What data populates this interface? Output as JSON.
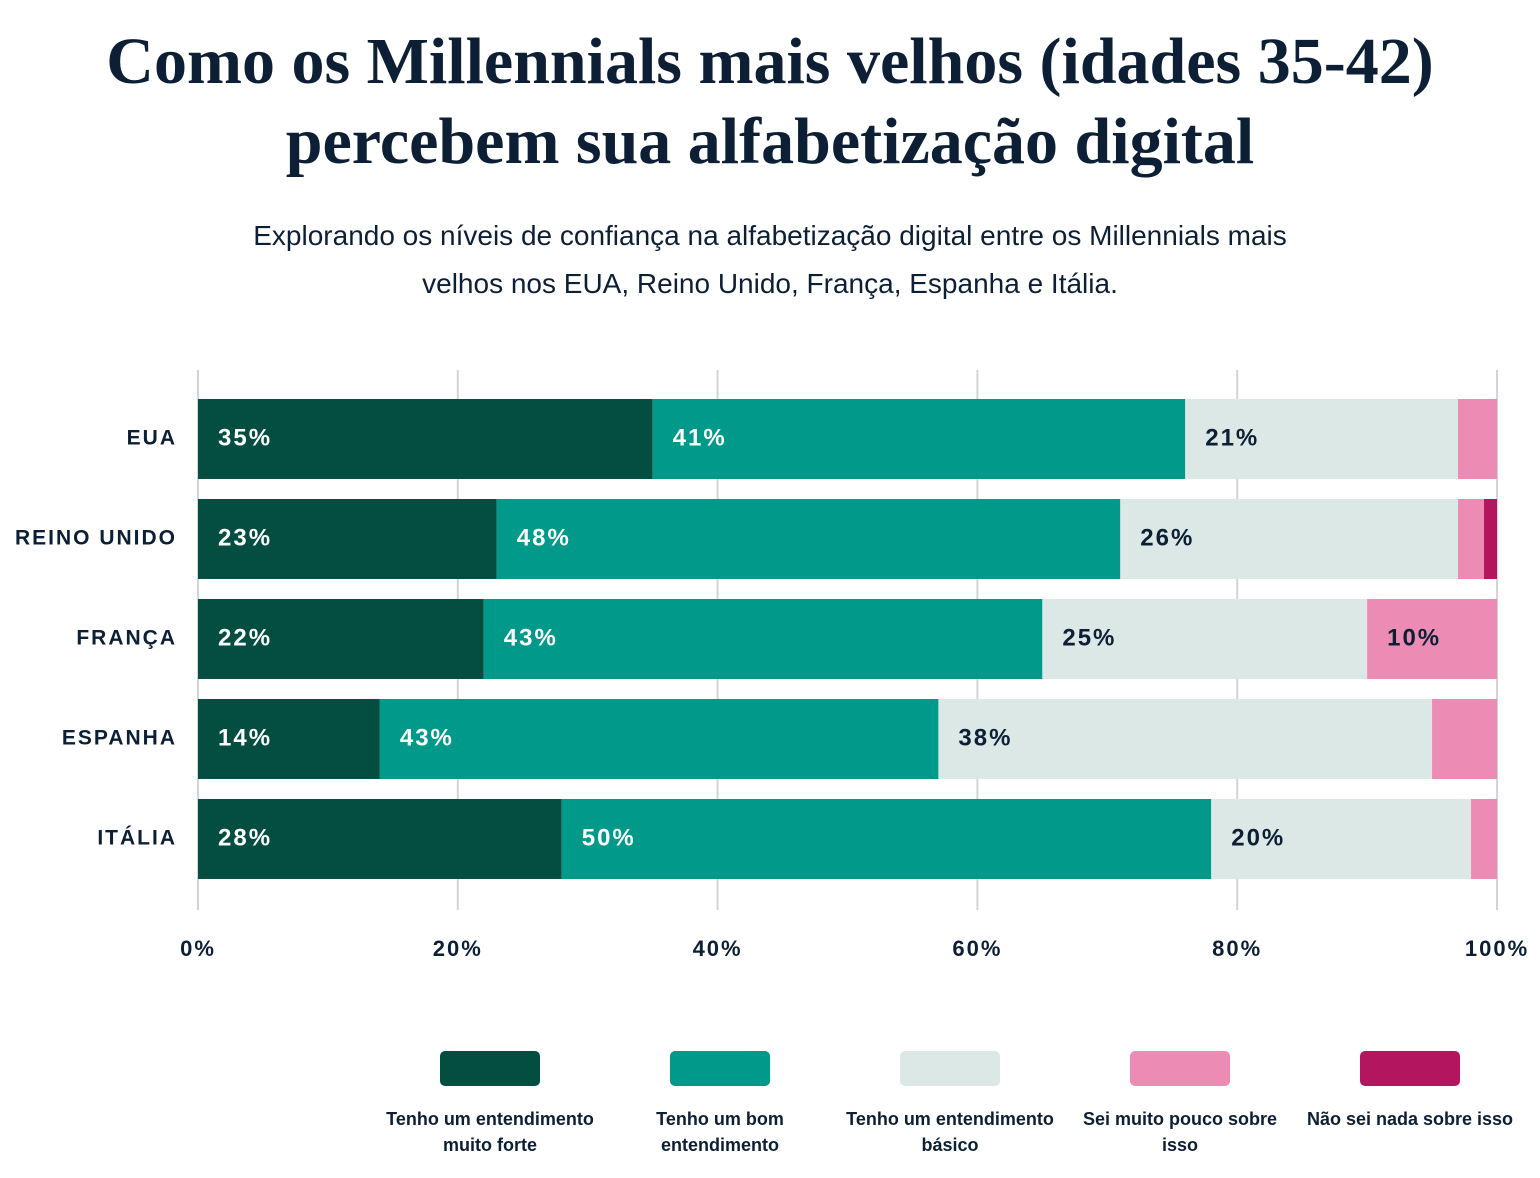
{
  "chart_data": {
    "type": "stacked_bar_horizontal",
    "title": "Como os Millennials mais velhos (idades 35-42) percebem sua alfabetização digital",
    "subtitle": "Explorando os níveis de confiança na alfabetização digital entre os Millennials mais velhos nos EUA, Reino Unido, França, Espanha e Itália.",
    "categories": [
      "EUA",
      "REINO UNIDO",
      "FRANÇA",
      "ESPANHA",
      "ITÁLIA"
    ],
    "series": [
      {
        "name": "Tenho um entendimento muito forte",
        "color": "#034e41",
        "values": [
          35,
          23,
          22,
          14,
          28
        ],
        "value_labels": [
          "35%",
          "23%",
          "22%",
          "14%",
          "28%"
        ]
      },
      {
        "name": "Tenho um bom entendimento",
        "color": "#00998a",
        "values": [
          41,
          48,
          43,
          43,
          50
        ],
        "value_labels": [
          "41%",
          "48%",
          "43%",
          "43%",
          "50%"
        ]
      },
      {
        "name": "Tenho um entendimento básico",
        "color": "#dce8e6",
        "values": [
          21,
          26,
          25,
          38,
          20
        ],
        "value_labels": [
          "21%",
          "26%",
          "25%",
          "38%",
          "20%"
        ]
      },
      {
        "name": "Sei muito pouco sobre isso",
        "color": "#ec8cb5",
        "values": [
          3,
          2,
          10,
          5,
          2
        ],
        "value_labels": [
          null,
          null,
          "10%",
          null,
          null
        ]
      },
      {
        "name": "Não sei nada sobre isso",
        "color": "#b3155f",
        "values": [
          0,
          1,
          0,
          0,
          0
        ],
        "value_labels": [
          null,
          null,
          null,
          null,
          null
        ]
      }
    ],
    "xlim": [
      0,
      100
    ],
    "xticks": [
      {
        "value": 0,
        "label": "0%"
      },
      {
        "value": 20,
        "label": "20%"
      },
      {
        "value": 40,
        "label": "40%"
      },
      {
        "value": 60,
        "label": "60%"
      },
      {
        "value": 80,
        "label": "80%"
      },
      {
        "value": 100,
        "label": "100%"
      }
    ],
    "grid": true,
    "legend": "bottom"
  }
}
